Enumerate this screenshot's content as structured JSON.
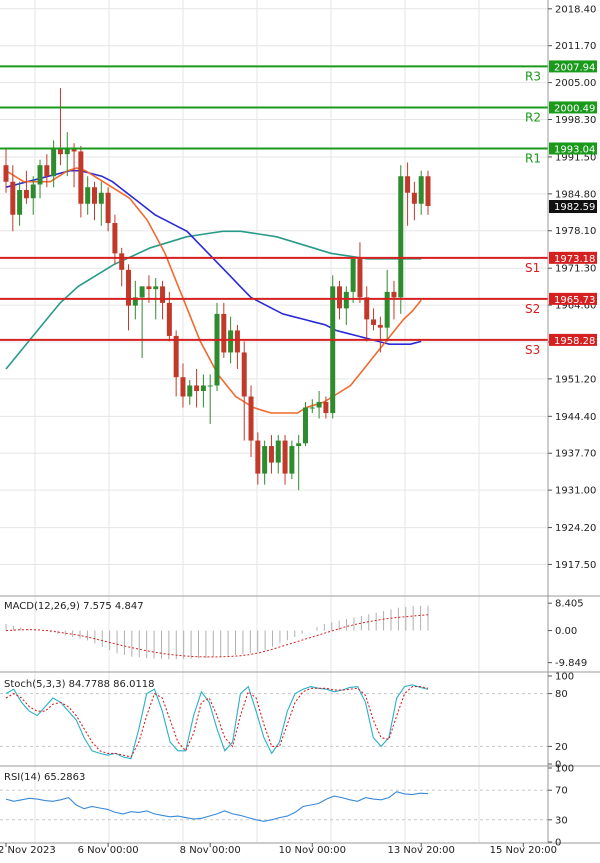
{
  "colors": {
    "background": "#ffffff",
    "grid": "#e6e6e6",
    "bull": "#2e8b2e",
    "bear": "#c0392b",
    "resistance": "#1a9a1a",
    "support": "#d62020",
    "ma_fast": "#f06a30",
    "ma_mid": "#2a2ad8",
    "ma_slow": "#2a9a88",
    "macd_hist": "#b0b0b0",
    "macd_signal": "#d62020",
    "stoch_main": "#2ab0c8",
    "stoch_signal": "#d62020",
    "rsi": "#3a8ad8",
    "axis_text": "#222222",
    "current_price_bg": "#111111"
  },
  "chart_data": [
    {
      "type": "candlestick",
      "title": "",
      "ylim": [
        1912.5,
        2020.0
      ],
      "y_ticks": [
        "2018.40",
        "2011.70",
        "2005.00",
        "1998.30",
        "1991.50",
        "1984.80",
        "1978.10",
        "1971.30",
        "1964.60",
        "1957.90",
        "1951.20",
        "1944.40",
        "1937.70",
        "1931.00",
        "1924.20",
        "1917.50"
      ],
      "levels": [
        {
          "label": "R3",
          "value": 2007.94,
          "price_label": "2007.94",
          "kind": "resistance"
        },
        {
          "label": "R2",
          "value": 2000.49,
          "price_label": "2000.49",
          "kind": "resistance"
        },
        {
          "label": "R1",
          "value": 1993.04,
          "price_label": "1993.04",
          "kind": "resistance"
        },
        {
          "label": "S1",
          "value": 1973.18,
          "price_label": "1973.18",
          "kind": "support"
        },
        {
          "label": "S2",
          "value": 1965.73,
          "price_label": "1965.73",
          "kind": "support"
        },
        {
          "label": "S3",
          "value": 1958.28,
          "price_label": "1958.28",
          "kind": "support"
        }
      ],
      "current_price": {
        "value": 1982.59,
        "label": "1982.59"
      },
      "x_tick_labels": [
        "2 Nov 2023",
        "6 Nov 00:00",
        "8 Nov 00:00",
        "10 Nov 00:00",
        "13 Nov 20:00",
        "15 Nov 20:00"
      ],
      "x_tick_index": [
        0,
        15,
        30,
        45,
        61,
        76
      ],
      "candles": [
        [
          1990.0,
          1993.0,
          1985.0,
          1987.0
        ],
        [
          1987.0,
          1990.0,
          1978.0,
          1981.0
        ],
        [
          1981.0,
          1987.0,
          1979.0,
          1985.5
        ],
        [
          1985.5,
          1989.0,
          1983.0,
          1984.0
        ],
        [
          1984.0,
          1988.0,
          1981.0,
          1986.5
        ],
        [
          1986.5,
          1991.0,
          1984.0,
          1990.0
        ],
        [
          1990.0,
          1992.0,
          1986.0,
          1988.0
        ],
        [
          1988.0,
          1994.5,
          1986.0,
          1993.0
        ],
        [
          1993.0,
          2004.0,
          1990.0,
          1992.0
        ],
        [
          1992.0,
          1996.0,
          1988.0,
          1993.0
        ],
        [
          1993.0,
          1994.0,
          1986.0,
          1992.5
        ],
        [
          1992.5,
          1993.5,
          1980.5,
          1983.0
        ],
        [
          1983.0,
          1988.0,
          1981.0,
          1986.0
        ],
        [
          1986.0,
          1987.0,
          1980.0,
          1983.0
        ],
        [
          1983.0,
          1987.0,
          1979.0,
          1985.0
        ],
        [
          1985.0,
          1986.0,
          1978.0,
          1979.5
        ],
        [
          1979.5,
          1981.0,
          1972.0,
          1974.0
        ],
        [
          1974.0,
          1975.0,
          1968.0,
          1971.0
        ],
        [
          1971.0,
          1972.0,
          1960.0,
          1964.5
        ],
        [
          1964.5,
          1969.0,
          1962.0,
          1966.0
        ],
        [
          1966.0,
          1968.0,
          1955.0,
          1968.0
        ],
        [
          1968.0,
          1970.0,
          1965.0,
          1967.5
        ],
        [
          1967.5,
          1969.5,
          1962.0,
          1968.0
        ],
        [
          1968.0,
          1969.0,
          1962.0,
          1965.0
        ],
        [
          1965.0,
          1967.0,
          1958.0,
          1959.0
        ],
        [
          1959.0,
          1960.0,
          1948.0,
          1951.5
        ],
        [
          1951.5,
          1954.0,
          1946.0,
          1948.0
        ],
        [
          1948.0,
          1951.0,
          1946.5,
          1950.0
        ],
        [
          1950.0,
          1953.0,
          1946.0,
          1949.0
        ],
        [
          1949.0,
          1952.0,
          1946.0,
          1950.0
        ],
        [
          1950.0,
          1952.0,
          1943.0,
          1950.0
        ],
        [
          1950.0,
          1965.0,
          1949.0,
          1963.0
        ],
        [
          1963.0,
          1965.0,
          1955.0,
          1956.0
        ],
        [
          1956.0,
          1962.5,
          1954.0,
          1960.0
        ],
        [
          1960.0,
          1961.0,
          1953.0,
          1956.0
        ],
        [
          1956.0,
          1958.0,
          1940.0,
          1948.0
        ],
        [
          1948.0,
          1950.0,
          1937.0,
          1940.0
        ],
        [
          1940.0,
          1941.5,
          1932.0,
          1934.0
        ],
        [
          1934.0,
          1940.0,
          1932.0,
          1939.0
        ],
        [
          1939.0,
          1941.0,
          1934.0,
          1936.0
        ],
        [
          1936.0,
          1941.0,
          1934.0,
          1940.0
        ],
        [
          1940.0,
          1941.0,
          1932.0,
          1934.0
        ],
        [
          1934.0,
          1940.0,
          1933.0,
          1939.0
        ],
        [
          1939.0,
          1941.0,
          1931.0,
          1939.5
        ],
        [
          1939.5,
          1947.0,
          1939.0,
          1946.0
        ],
        [
          1946.0,
          1947.5,
          1945.0,
          1946.0
        ],
        [
          1946.0,
          1949.0,
          1944.0,
          1947.0
        ],
        [
          1947.0,
          1948.0,
          1944.0,
          1945.0
        ],
        [
          1945.0,
          1970.0,
          1944.0,
          1968.0
        ],
        [
          1968.0,
          1969.0,
          1962.0,
          1964.0
        ],
        [
          1964.0,
          1968.0,
          1961.0,
          1967.0
        ],
        [
          1967.0,
          1973.0,
          1965.0,
          1973.0
        ],
        [
          1973.0,
          1976.0,
          1965.0,
          1966.0
        ],
        [
          1966.0,
          1968.0,
          1958.0,
          1962.0
        ],
        [
          1962.0,
          1964.0,
          1960.0,
          1961.0
        ],
        [
          1961.0,
          1962.5,
          1956.0,
          1960.5
        ],
        [
          1960.5,
          1971.0,
          1958.0,
          1967.0
        ],
        [
          1967.0,
          1969.0,
          1962.0,
          1966.0
        ],
        [
          1966.0,
          1990.0,
          1963.0,
          1988.0
        ],
        [
          1988.0,
          1990.5,
          1979.0,
          1985.0
        ],
        [
          1985.0,
          1987.0,
          1980.0,
          1983.0
        ],
        [
          1983.0,
          1989.0,
          1981.0,
          1988.0
        ],
        [
          1988.0,
          1989.0,
          1981.0,
          1982.59
        ]
      ],
      "ma_fast": [
        1989,
        1988,
        1987,
        1987,
        1987,
        1987,
        1988,
        1989,
        1989.5,
        1989,
        1988,
        1987,
        1986,
        1985,
        1984,
        1982,
        1980,
        1977,
        1974,
        1970,
        1966,
        1962,
        1958,
        1955,
        1952,
        1950,
        1948,
        1947,
        1946,
        1945.5,
        1945,
        1945,
        1945,
        1945,
        1946,
        1946.5,
        1947,
        1948,
        1949,
        1950,
        1952,
        1954,
        1956,
        1958,
        1960,
        1962,
        1963.5,
        1965.5
      ],
      "ma_mid": [
        1986,
        1986.5,
        1987,
        1987.5,
        1988,
        1988.5,
        1989,
        1989,
        1988.5,
        1988,
        1987,
        1985.5,
        1984,
        1982.5,
        1981,
        1980,
        1979,
        1978,
        1976,
        1974,
        1972,
        1970,
        1968,
        1966,
        1965,
        1964,
        1963,
        1962.5,
        1962,
        1961.5,
        1961,
        1960,
        1959.5,
        1959,
        1958.5,
        1958,
        1957.5,
        1957.5,
        1957.5,
        1958
      ],
      "ma_slow": [
        1953,
        1957,
        1961,
        1965,
        1968,
        1970,
        1972,
        1973.5,
        1975,
        1976,
        1977,
        1977.5,
        1978,
        1978,
        1977.5,
        1977,
        1976,
        1975,
        1974,
        1973.5,
        1973,
        1973,
        1973,
        1973
      ],
      "x_range_fast": [
        0,
        61
      ],
      "x_range_mid": [
        0,
        61
      ],
      "x_range_slow": [
        0,
        61
      ]
    },
    {
      "type": "histogram",
      "title": "MACD(12,26,9) 7.575 4.847",
      "ylim": [
        -11.5,
        10.0
      ],
      "y_ticks": [
        "8.405",
        "0.00",
        "-9.849"
      ],
      "histogram": [
        2,
        1.5,
        1,
        0.5,
        0.2,
        0,
        -0.5,
        -1,
        -1.5,
        -2,
        -2.5,
        -3,
        -4,
        -5,
        -6,
        -7,
        -7.5,
        -8,
        -8.2,
        -8.5,
        -8.6,
        -8.7,
        -8.8,
        -8.8,
        -8.7,
        -8.6,
        -8.5,
        -8.4,
        -8.2,
        -8,
        -7.8,
        -7.5,
        -7.2,
        -7,
        -6.5,
        -6,
        -5,
        -4,
        -3,
        -2,
        -1,
        0,
        1,
        2,
        2.5,
        3,
        3.5,
        4,
        4.5,
        5,
        5.5,
        6,
        6.5,
        7,
        7.2,
        7.5,
        7.6,
        7.575
      ],
      "signal": [
        0,
        0.2,
        0.3,
        0.2,
        0,
        -0.5,
        -1,
        -1.5,
        -2.2,
        -3,
        -3.8,
        -4.6,
        -5.3,
        -6,
        -6.6,
        -7.1,
        -7.5,
        -7.8,
        -8,
        -8.1,
        -8.1,
        -8,
        -7.8,
        -7.4,
        -6.8,
        -6,
        -5,
        -4,
        -3,
        -2,
        -1,
        0,
        1,
        1.8,
        2.5,
        3.1,
        3.6,
        4,
        4.3,
        4.6,
        4.847
      ]
    },
    {
      "type": "line",
      "title": "Stoch(5,3,3) 84.7788 86.0118",
      "ylim": [
        0,
        100
      ],
      "y_ticks": [
        "100",
        "80",
        "20",
        "0"
      ],
      "main": [
        80,
        85,
        70,
        60,
        55,
        65,
        75,
        70,
        60,
        50,
        30,
        15,
        12,
        10,
        12,
        8,
        6,
        40,
        80,
        85,
        60,
        25,
        15,
        15,
        55,
        82,
        70,
        40,
        15,
        25,
        80,
        88,
        60,
        30,
        12,
        25,
        60,
        80,
        85,
        88,
        86,
        85,
        82,
        84,
        87,
        88,
        70,
        30,
        20,
        30,
        75,
        88,
        90,
        87,
        84.7788
      ],
      "signal": [
        75,
        80,
        75,
        65,
        60,
        60,
        68,
        70,
        65,
        55,
        40,
        25,
        15,
        12,
        12,
        10,
        8,
        25,
        55,
        80,
        75,
        50,
        25,
        15,
        35,
        70,
        75,
        55,
        30,
        20,
        55,
        82,
        75,
        45,
        20,
        20,
        45,
        70,
        82,
        86,
        86,
        86,
        84,
        84,
        85,
        86,
        78,
        50,
        30,
        28,
        55,
        80,
        88,
        88,
        86.0118
      ]
    },
    {
      "type": "line",
      "title": "RSI(14) 65.2863",
      "ylim": [
        0,
        100
      ],
      "y_ticks": [
        "100",
        "70",
        "30",
        "0"
      ],
      "values": [
        58,
        55,
        57,
        59,
        58,
        56,
        55,
        57,
        60,
        50,
        45,
        48,
        46,
        44,
        40,
        38,
        41,
        40,
        42,
        38,
        36,
        34,
        35,
        33,
        31,
        32,
        35,
        38,
        42,
        38,
        36,
        33,
        30,
        28,
        30,
        33,
        35,
        40,
        48,
        50,
        52,
        58,
        62,
        60,
        57,
        55,
        60,
        58,
        57,
        60,
        68,
        65,
        64,
        66,
        65.2863
      ]
    }
  ]
}
